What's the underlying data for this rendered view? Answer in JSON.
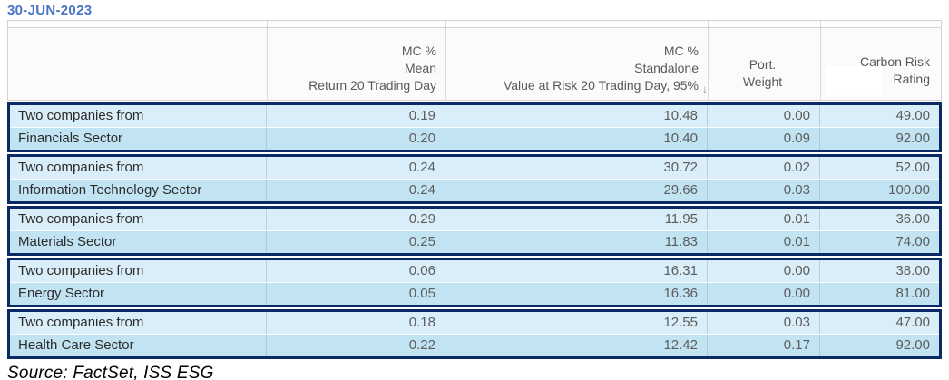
{
  "title": "30-JUN-2023",
  "source_note": "Source: FactSet, ISS ESG",
  "colors": {
    "title_blue": "#4a74c4",
    "group_border_navy": "#0a2a66",
    "row_light_blue": "#d9eef8",
    "row_medium_blue": "#c2e4f2",
    "header_text_gray": "#595959",
    "number_text_gray": "#5d5d5d"
  },
  "table": {
    "columns": [
      {
        "id": "entity",
        "lines": [
          "",
          "",
          ""
        ]
      },
      {
        "id": "mc_mean_return",
        "lines": [
          "MC %",
          "Mean",
          "Return 20 Trading Day"
        ]
      },
      {
        "id": "mc_standalone_var",
        "lines": [
          "MC %",
          "Standalone",
          "Value at Risk 20 Trading Day, 95%"
        ],
        "sort_icon": "↓"
      },
      {
        "id": "port_weight",
        "lines": [
          "Port.",
          "Weight"
        ]
      },
      {
        "id": "carbon_risk_rating",
        "lines": [
          "Carbon Risk",
          "Rating"
        ]
      }
    ],
    "groups": [
      {
        "sector": "Financials",
        "rows": [
          {
            "cells": [
              "Two companies from",
              "0.19",
              "10.48",
              "0.00",
              "49.00"
            ]
          },
          {
            "cells": [
              "Financials Sector",
              "0.20",
              "10.40",
              "0.09",
              "92.00"
            ]
          }
        ]
      },
      {
        "sector": "Information Technology",
        "rows": [
          {
            "cells": [
              "Two companies from",
              "0.24",
              "30.72",
              "0.02",
              "52.00"
            ]
          },
          {
            "cells": [
              "Information Technology Sector",
              "0.24",
              "29.66",
              "0.03",
              "100.00"
            ]
          }
        ]
      },
      {
        "sector": "Materials",
        "rows": [
          {
            "cells": [
              "Two companies from",
              "0.29",
              "11.95",
              "0.01",
              "36.00"
            ]
          },
          {
            "cells": [
              "Materials Sector",
              "0.25",
              "11.83",
              "0.01",
              "74.00"
            ]
          }
        ]
      },
      {
        "sector": "Energy",
        "rows": [
          {
            "cells": [
              "Two companies from",
              "0.06",
              "16.31",
              "0.00",
              "38.00"
            ]
          },
          {
            "cells": [
              "Energy Sector",
              "0.05",
              "16.36",
              "0.00",
              "81.00"
            ]
          }
        ]
      },
      {
        "sector": "Health Care",
        "rows": [
          {
            "cells": [
              "Two companies from",
              "0.18",
              "12.55",
              "0.03",
              "47.00"
            ]
          },
          {
            "cells": [
              "Health Care Sector",
              "0.22",
              "12.42",
              "0.17",
              "92.00"
            ]
          }
        ]
      }
    ]
  }
}
